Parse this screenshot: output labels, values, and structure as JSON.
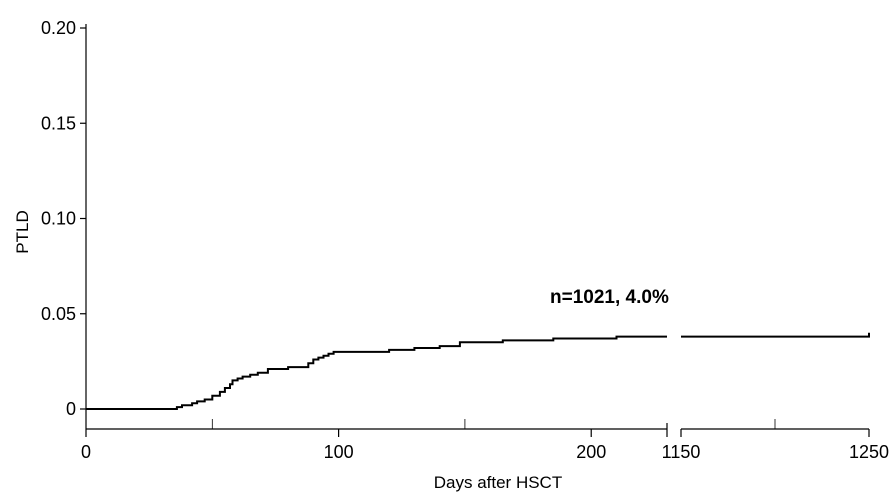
{
  "chart_data": {
    "type": "line",
    "title": "",
    "xlabel": "Days after HSCT",
    "ylabel": "PTLD",
    "ylim": [
      0,
      0.2
    ],
    "yticks": [
      "0",
      "0.05",
      "0.10",
      "0.15",
      "0.20"
    ],
    "x_segments": [
      {
        "range": [
          0,
          230
        ],
        "tick_labels": [
          "0",
          "100",
          "200"
        ],
        "minor_ticks": [
          50,
          150
        ]
      },
      {
        "range": [
          1150,
          1250
        ],
        "tick_labels": [
          "1150",
          "1250"
        ],
        "minor_ticks": [
          1200
        ]
      }
    ],
    "grid": false,
    "annotation": "n=1021, 4.0%",
    "series": [
      {
        "x": [
          0,
          36,
          38,
          40,
          42,
          44,
          47,
          50,
          53,
          55,
          57,
          58,
          60,
          62,
          65,
          68,
          72,
          80,
          87,
          88,
          90,
          92,
          94,
          96,
          98,
          100,
          120,
          130,
          140,
          148,
          165,
          185,
          195,
          210,
          230,
          1150,
          1185,
          1250
        ],
        "y": [
          0,
          0.001,
          0.002,
          0.002,
          0.003,
          0.004,
          0.005,
          0.007,
          0.009,
          0.011,
          0.013,
          0.015,
          0.016,
          0.017,
          0.018,
          0.019,
          0.021,
          0.022,
          0.022,
          0.024,
          0.026,
          0.027,
          0.028,
          0.029,
          0.03,
          0.03,
          0.031,
          0.032,
          0.033,
          0.035,
          0.036,
          0.037,
          0.037,
          0.038,
          0.038,
          0.038,
          0.038,
          0.04
        ]
      }
    ]
  }
}
